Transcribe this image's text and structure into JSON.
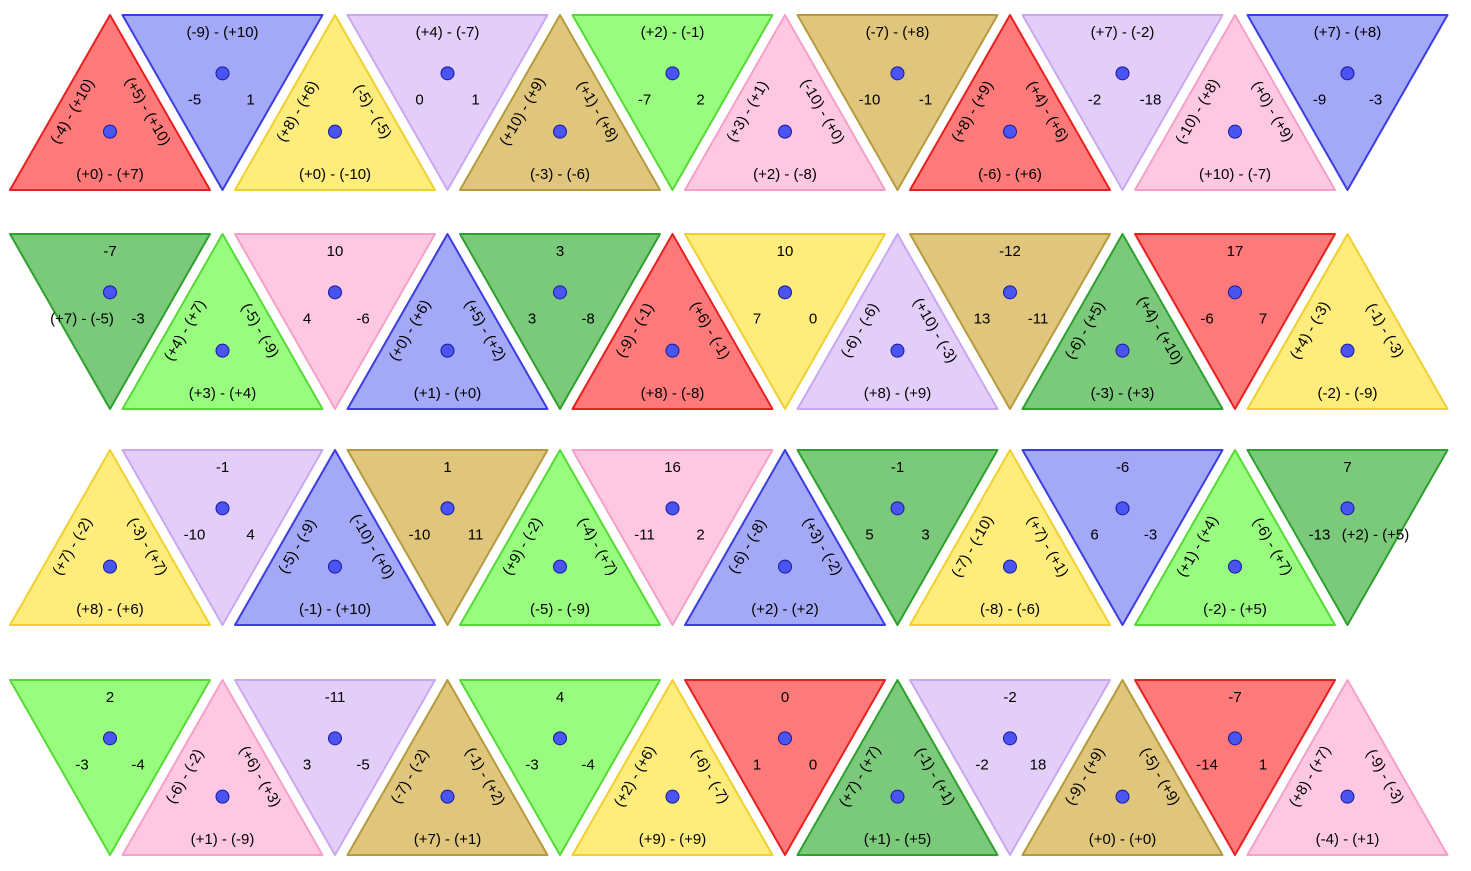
{
  "colors": {
    "red": {
      "fill": "#fe7a7a",
      "stroke": "#e82020"
    },
    "blue": {
      "fill": "#a3a8f7",
      "stroke": "#3c3ce0"
    },
    "yellow": {
      "fill": "#feec7c",
      "stroke": "#f0d030"
    },
    "violet": {
      "fill": "#e3cefa",
      "stroke": "#c9a8f0"
    },
    "khaki": {
      "fill": "#e0c57c",
      "stroke": "#b59a3e"
    },
    "lime": {
      "fill": "#98fc7f",
      "stroke": "#56da36"
    },
    "pink": {
      "fill": "#fec8e2",
      "stroke": "#f5a0c8"
    },
    "green": {
      "fill": "#7bc97b",
      "stroke": "#2ea02e"
    },
    "dot": "#4a54f0",
    "dot_stroke": "#1818a0"
  },
  "rows": [
    [
      {
        "color": "red",
        "labels": [
          "(+0) - (+7)",
          "(+5) - (+10)",
          "(-4) - (+10)"
        ]
      },
      {
        "color": "blue",
        "labels": [
          "(-9) - (+10)",
          "1",
          "-5"
        ]
      },
      {
        "color": "yellow",
        "labels": [
          "(+0) - (-10)",
          "(-5) - (-5)",
          "(+8) - (+6)"
        ]
      },
      {
        "color": "violet",
        "labels": [
          "(+4) - (-7)",
          "1",
          "0"
        ]
      },
      {
        "color": "khaki",
        "labels": [
          "(-3) - (-6)",
          "(+1) - (+8)",
          "(+10) - (+9)"
        ]
      },
      {
        "color": "lime",
        "labels": [
          "(+2) - (-1)",
          "2",
          "-7"
        ]
      },
      {
        "color": "pink",
        "labels": [
          "(+2) - (-8)",
          "(-10) - (+0)",
          "(+3) - (+1)"
        ]
      },
      {
        "color": "khaki",
        "labels": [
          "(-7) - (+8)",
          "-1",
          "-10"
        ]
      },
      {
        "color": "red",
        "labels": [
          "(-6) - (+6)",
          "(+4) - (+6)",
          "(+8) - (+9)"
        ]
      },
      {
        "color": "violet",
        "labels": [
          "(+7) - (-2)",
          "-18",
          "-2"
        ]
      },
      {
        "color": "pink",
        "labels": [
          "(+10) - (-7)",
          "(+0) - (+9)",
          "(-10) - (+8)"
        ]
      },
      {
        "color": "blue",
        "labels": [
          "(+7) - (+8)",
          "-3",
          "-9"
        ]
      }
    ],
    [
      {
        "color": "green",
        "labels": [
          "-7",
          "-3",
          "(+7) - (-5)"
        ]
      },
      {
        "color": "lime",
        "labels": [
          "(+3) - (+4)",
          "(-5) - (-9)",
          "(+4) - (+7)"
        ]
      },
      {
        "color": "pink",
        "labels": [
          "10",
          "-6",
          "4"
        ]
      },
      {
        "color": "blue",
        "labels": [
          "(+1) - (+0)",
          "(+5) - (+2)",
          "(+0) - (+6)"
        ]
      },
      {
        "color": "green",
        "labels": [
          "3",
          "-8",
          "3"
        ]
      },
      {
        "color": "red",
        "labels": [
          "(+8) - (-8)",
          "(+6) - (-1)",
          "(-9) - (-1)"
        ]
      },
      {
        "color": "yellow",
        "labels": [
          "10",
          "0",
          "7"
        ]
      },
      {
        "color": "violet",
        "labels": [
          "(+8) - (+9)",
          "(+10) - (-3)",
          "(-6) - (-6)"
        ]
      },
      {
        "color": "khaki",
        "labels": [
          "-12",
          "-11",
          "13"
        ]
      },
      {
        "color": "green",
        "labels": [
          "(-3) - (+3)",
          "(+4) - (+10)",
          "(-6) - (+5)"
        ]
      },
      {
        "color": "red",
        "labels": [
          "17",
          "7",
          "-6"
        ]
      },
      {
        "color": "yellow",
        "labels": [
          "(-2) - (-9)",
          "(-1) - (-3)",
          "(+4) - (-3)"
        ]
      }
    ],
    [
      {
        "color": "yellow",
        "labels": [
          "(+8) - (+6)",
          "(-3) - (+7)",
          "(+7) - (-2)"
        ]
      },
      {
        "color": "violet",
        "labels": [
          "-1",
          "4",
          "-10"
        ]
      },
      {
        "color": "blue",
        "labels": [
          "(-1) - (+10)",
          "(-10) - (+0)",
          "(-5) - (-9)"
        ]
      },
      {
        "color": "khaki",
        "labels": [
          "1",
          "11",
          "-10"
        ]
      },
      {
        "color": "lime",
        "labels": [
          "(-5) - (-9)",
          "(-4) - (+7)",
          "(+9) - (-2)"
        ]
      },
      {
        "color": "pink",
        "labels": [
          "16",
          "2",
          "-11"
        ]
      },
      {
        "color": "blue",
        "labels": [
          "(+2) - (+2)",
          "(+3) - (-2)",
          "(-6) - (-8)"
        ]
      },
      {
        "color": "green",
        "labels": [
          "-1",
          "3",
          "5"
        ]
      },
      {
        "color": "yellow",
        "labels": [
          "(-8) - (-6)",
          "(+7) - (+1)",
          "(-7) - (-10)"
        ]
      },
      {
        "color": "blue",
        "labels": [
          "-6",
          "-3",
          "6"
        ]
      },
      {
        "color": "lime",
        "labels": [
          "(-2) - (+5)",
          "(-6) - (+7)",
          "(+1) - (+4)"
        ]
      },
      {
        "color": "green",
        "labels": [
          "7",
          "(+2) - (+5)",
          "-13"
        ]
      }
    ],
    [
      {
        "color": "lime",
        "labels": [
          "2",
          "-4",
          "-3"
        ]
      },
      {
        "color": "pink",
        "labels": [
          "(+1) - (-9)",
          "(+6) - (+3)",
          "(-6) - (-2)"
        ]
      },
      {
        "color": "violet",
        "labels": [
          "-11",
          "-5",
          "3"
        ]
      },
      {
        "color": "khaki",
        "labels": [
          "(+7) - (+1)",
          "(-1) - (+2)",
          "(-7) - (-2)"
        ]
      },
      {
        "color": "lime",
        "labels": [
          "4",
          "-4",
          "-3"
        ]
      },
      {
        "color": "yellow",
        "labels": [
          "(+9) - (+9)",
          "(-6) - (-7)",
          "(+2) - (+6)"
        ]
      },
      {
        "color": "red",
        "labels": [
          "0",
          "0",
          "1"
        ]
      },
      {
        "color": "green",
        "labels": [
          "(+1) - (+5)",
          "(-1) - (+1)",
          "(+7) - (+7)"
        ]
      },
      {
        "color": "violet",
        "labels": [
          "-2",
          "18",
          "-2"
        ]
      },
      {
        "color": "khaki",
        "labels": [
          "(+0) - (+0)",
          "(-5) - (+9)",
          "(-9) - (+9)"
        ]
      },
      {
        "color": "red",
        "labels": [
          "-7",
          "1",
          "-14"
        ]
      },
      {
        "color": "pink",
        "labels": [
          "(-4) - (+1)",
          "(-9) - (-3)",
          "(+8) - (+7)"
        ]
      }
    ]
  ]
}
